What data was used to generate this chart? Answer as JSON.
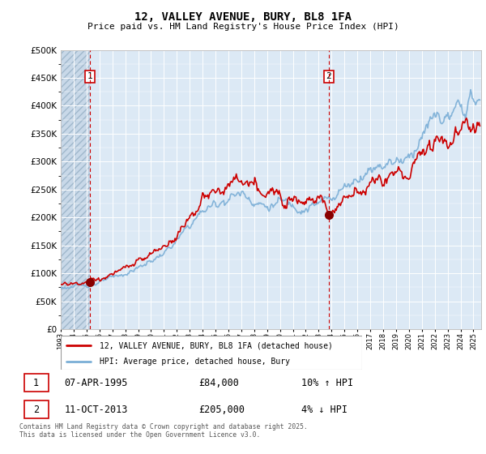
{
  "title": "12, VALLEY AVENUE, BURY, BL8 1FA",
  "subtitle": "Price paid vs. HM Land Registry's House Price Index (HPI)",
  "ylim": [
    0,
    500000
  ],
  "xlim_start": 1993,
  "xlim_end": 2025.6,
  "purchase1_date": 1995.27,
  "purchase1_price": 84000,
  "purchase2_date": 2013.78,
  "purchase2_price": 205000,
  "legend_line1": "12, VALLEY AVENUE, BURY, BL8 1FA (detached house)",
  "legend_line2": "HPI: Average price, detached house, Bury",
  "table_row1": [
    "1",
    "07-APR-1995",
    "£84,000",
    "10% ↑ HPI"
  ],
  "table_row2": [
    "2",
    "11-OCT-2013",
    "£205,000",
    "4% ↓ HPI"
  ],
  "footer": "Contains HM Land Registry data © Crown copyright and database right 2025.\nThis data is licensed under the Open Government Licence v3.0.",
  "line_color_property": "#cc0000",
  "line_color_hpi": "#7aaed6",
  "background_color": "#ffffff",
  "plot_bg_color": "#dce9f5",
  "grid_color": "#ffffff",
  "hatch_color": "#c8d8e8",
  "purchase_marker_color": "#880000",
  "vline_color": "#cc0000",
  "hpi_anchor_years": [
    1993,
    1994,
    1995,
    1996,
    1997,
    1998,
    1999,
    2000,
    2001,
    2002,
    2003,
    2004,
    2005,
    2006,
    2007,
    2008,
    2009,
    2010,
    2011,
    2012,
    2013,
    2014,
    2015,
    2016,
    2017,
    2018,
    2019,
    2020,
    2021,
    2022,
    2023,
    2024,
    2025
  ],
  "hpi_anchor_vals": [
    74000,
    76000,
    79000,
    84000,
    91000,
    99000,
    110000,
    122000,
    136000,
    157000,
    186000,
    212000,
    224000,
    236000,
    244000,
    232000,
    218000,
    228000,
    224000,
    218000,
    223000,
    238000,
    255000,
    272000,
    288000,
    298000,
    303000,
    308000,
    348000,
    380000,
    375000,
    392000,
    410000
  ],
  "prop_anchor_years": [
    1993,
    1994,
    1995,
    1996,
    1997,
    1998,
    1999,
    2000,
    2001,
    2002,
    2003,
    2004,
    2005,
    2006,
    2007,
    2008,
    2009,
    2010,
    2011,
    2012,
    2013,
    2013.78,
    2014,
    2015,
    2016,
    2017,
    2018,
    2019,
    2020,
    2021,
    2022,
    2023,
    2024,
    2025
  ],
  "prop_anchor_vals": [
    79000,
    81500,
    84000,
    90000,
    98000,
    107000,
    119000,
    132000,
    147000,
    170000,
    202000,
    230000,
    242000,
    255000,
    265000,
    252000,
    237000,
    247000,
    243000,
    236000,
    242000,
    205000,
    215000,
    232000,
    248000,
    262000,
    271000,
    276000,
    280000,
    317000,
    347000,
    342000,
    358000,
    375000
  ]
}
